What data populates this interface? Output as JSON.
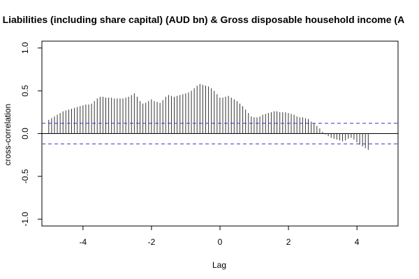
{
  "chart_data": {
    "type": "bar",
    "title": "al Liabilities (including share capital) (AUD bn)  & Gross disposable household income (A",
    "xlabel": "Lag",
    "ylabel": "cross-correlation",
    "xlim": [
      -5.2,
      5.2
    ],
    "ylim": [
      -1.0,
      1.0
    ],
    "x_ticks": [
      -4,
      -2,
      0,
      2,
      4
    ],
    "x_tick_labels": [
      "-4",
      "-2",
      "0",
      "2",
      "4"
    ],
    "y_ticks": [
      -1.0,
      -0.5,
      0.0,
      0.5,
      1.0
    ],
    "y_tick_labels": [
      "-1.0",
      "-0.5",
      "0.0",
      "0.5",
      "1.0"
    ],
    "confidence_bounds": [
      0.12,
      -0.12
    ],
    "lag_step": 0.0833,
    "lag_start": -5.0,
    "values": [
      0.16,
      0.18,
      0.2,
      0.22,
      0.24,
      0.26,
      0.27,
      0.28,
      0.29,
      0.3,
      0.31,
      0.32,
      0.33,
      0.34,
      0.34,
      0.35,
      0.38,
      0.41,
      0.43,
      0.43,
      0.42,
      0.42,
      0.42,
      0.41,
      0.41,
      0.41,
      0.41,
      0.42,
      0.43,
      0.45,
      0.47,
      0.43,
      0.38,
      0.35,
      0.36,
      0.38,
      0.4,
      0.38,
      0.37,
      0.36,
      0.39,
      0.43,
      0.45,
      0.44,
      0.43,
      0.44,
      0.45,
      0.46,
      0.47,
      0.48,
      0.5,
      0.53,
      0.56,
      0.58,
      0.57,
      0.56,
      0.55,
      0.53,
      0.5,
      0.46,
      0.42,
      0.42,
      0.43,
      0.44,
      0.42,
      0.4,
      0.38,
      0.35,
      0.32,
      0.28,
      0.24,
      0.2,
      0.19,
      0.19,
      0.2,
      0.22,
      0.23,
      0.24,
      0.25,
      0.26,
      0.26,
      0.25,
      0.25,
      0.25,
      0.24,
      0.23,
      0.22,
      0.2,
      0.19,
      0.19,
      0.18,
      0.17,
      0.14,
      0.12,
      0.09,
      0.06,
      0.02,
      -0.01,
      -0.03,
      -0.05,
      -0.06,
      -0.07,
      -0.08,
      -0.09,
      -0.08,
      -0.06,
      -0.05,
      -0.07,
      -0.1,
      -0.13,
      -0.15,
      -0.17,
      -0.19
    ]
  }
}
